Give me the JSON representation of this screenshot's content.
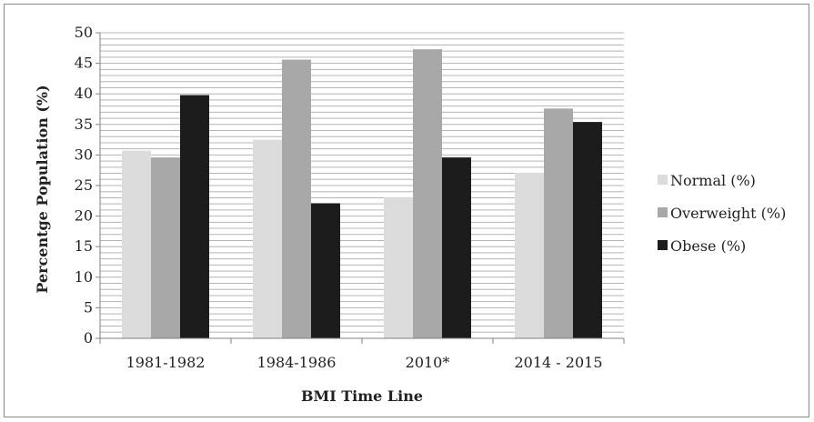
{
  "chart_data": {
    "type": "bar",
    "title": "",
    "xlabel": "BMI Time Line",
    "ylabel": "Percentge Population (%)",
    "categories": [
      "1981-1982",
      "1984-1986",
      "2010*",
      "2014 - 2015"
    ],
    "ylim": [
      0,
      50
    ],
    "yticks": [
      0,
      5,
      10,
      15,
      20,
      25,
      30,
      35,
      40,
      45,
      50
    ],
    "grid": true,
    "legend_position": "right",
    "series": [
      {
        "name": "Normal (%)",
        "color": "#dcdcdc",
        "values": [
          30.7,
          32.5,
          23.1,
          27.1
        ]
      },
      {
        "name": "Overweight (%)",
        "color": "#a8a8a8",
        "values": [
          29.6,
          45.6,
          47.3,
          37.6
        ]
      },
      {
        "name": "Obese (%)",
        "color": "#1c1c1c",
        "values": [
          39.8,
          22.1,
          29.6,
          35.4
        ]
      }
    ]
  }
}
